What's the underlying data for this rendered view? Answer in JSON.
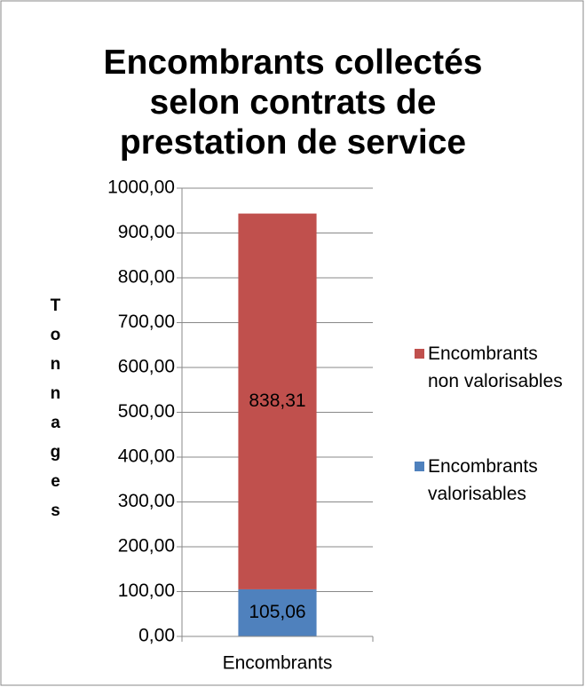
{
  "chart_data": {
    "type": "stacked_bar",
    "title": "Encombrants collectés selon contrats de prestation de service",
    "y_label": "Tonnages",
    "categories": [
      "Encombrants"
    ],
    "series": [
      {
        "name": "Encombrants valorisables",
        "color": "#4f81bd",
        "values": [
          105.06
        ],
        "value_labels": [
          "105,06"
        ]
      },
      {
        "name": "Encombrants non valorisables",
        "color": "#c0504d",
        "values": [
          838.31
        ],
        "value_labels": [
          "838,31"
        ]
      }
    ],
    "ylim": [
      0,
      1000
    ],
    "yticks": [
      {
        "value": 0,
        "label": "0,00"
      },
      {
        "value": 100,
        "label": "100,00"
      },
      {
        "value": 200,
        "label": "200,00"
      },
      {
        "value": 300,
        "label": "300,00"
      },
      {
        "value": 400,
        "label": "400,00"
      },
      {
        "value": 500,
        "label": "500,00"
      },
      {
        "value": 600,
        "label": "600,00"
      },
      {
        "value": 700,
        "label": "700,00"
      },
      {
        "value": 800,
        "label": "800,00"
      },
      {
        "value": 900,
        "label": "900,00"
      },
      {
        "value": 1000,
        "label": "1000,00"
      }
    ],
    "grid": true,
    "legend": "right"
  }
}
